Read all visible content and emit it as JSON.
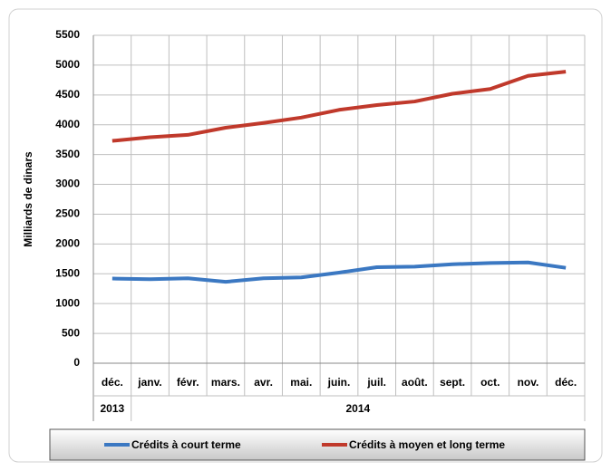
{
  "chart_data": {
    "type": "line",
    "y_label": "Milliards de dinars",
    "categories": [
      "déc.",
      "janv.",
      "févr.",
      "mars.",
      "avr.",
      "mai.",
      "juin.",
      "juil.",
      "août.",
      "sept.",
      "oct.",
      "nov.",
      "déc."
    ],
    "category_groups": [
      {
        "label": "2013",
        "span": 1
      },
      {
        "label": "2014",
        "span": 12
      }
    ],
    "series": [
      {
        "name": "Crédits à court terme",
        "color": "#3b78c2",
        "values": [
          1420,
          1410,
          1425,
          1365,
          1425,
          1440,
          1520,
          1610,
          1620,
          1660,
          1680,
          1690,
          1600
        ]
      },
      {
        "name": "Crédits à moyen et long terme",
        "color": "#c0392b",
        "values": [
          3730,
          3790,
          3830,
          3950,
          4030,
          4120,
          4250,
          4330,
          4390,
          4520,
          4600,
          4820,
          4890
        ]
      }
    ],
    "ylim": [
      0,
      5500
    ],
    "yticks": [
      0,
      500,
      1000,
      1500,
      2000,
      2500,
      3000,
      3500,
      4000,
      4500,
      5000,
      5500
    ],
    "grid": true,
    "legend": "bottom"
  }
}
